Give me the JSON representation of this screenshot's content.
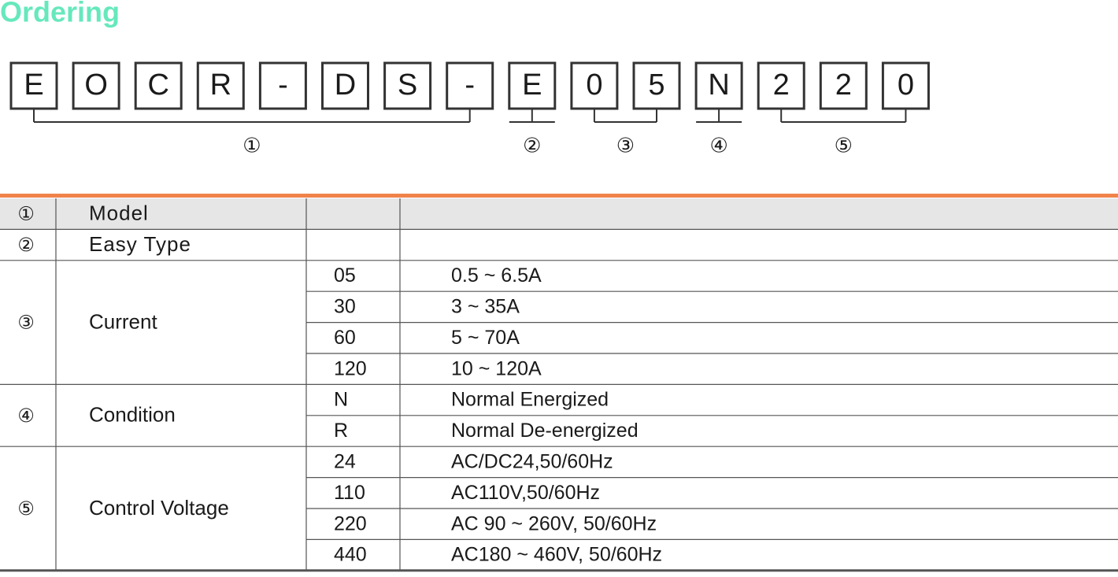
{
  "header": {
    "title": "Ordering"
  },
  "code": {
    "chars": [
      "E",
      "O",
      "C",
      "R",
      "-",
      "D",
      "S",
      "-",
      "E",
      "0",
      "5",
      "N",
      "2",
      "2",
      "0"
    ],
    "groups": [
      "①",
      "②",
      "③",
      "④",
      "⑤"
    ]
  },
  "table": {
    "sections": [
      {
        "num": "①",
        "name": "Model",
        "options": []
      },
      {
        "num": "②",
        "name": "Easy Type",
        "options": []
      },
      {
        "num": "③",
        "name": "Current",
        "options": [
          {
            "code": "05",
            "desc": "0.5 ~ 6.5A"
          },
          {
            "code": "30",
            "desc": "3 ~ 35A"
          },
          {
            "code": "60",
            "desc": "5 ~ 70A"
          },
          {
            "code": "120",
            "desc": "10 ~ 120A"
          }
        ]
      },
      {
        "num": "④",
        "name": "Condition",
        "options": [
          {
            "code": "N",
            "desc": "Normal Energized"
          },
          {
            "code": "R",
            "desc": "Normal De-energized"
          }
        ]
      },
      {
        "num": "⑤",
        "name": "Control Voltage",
        "options": [
          {
            "code": "24",
            "desc": "AC/DC24,50/60Hz"
          },
          {
            "code": "110",
            "desc": "AC110V,50/60Hz"
          },
          {
            "code": "220",
            "desc": "AC 90 ~ 260V, 50/60Hz"
          },
          {
            "code": "440",
            "desc": "AC180 ~ 460V, 50/60Hz"
          }
        ]
      }
    ]
  }
}
